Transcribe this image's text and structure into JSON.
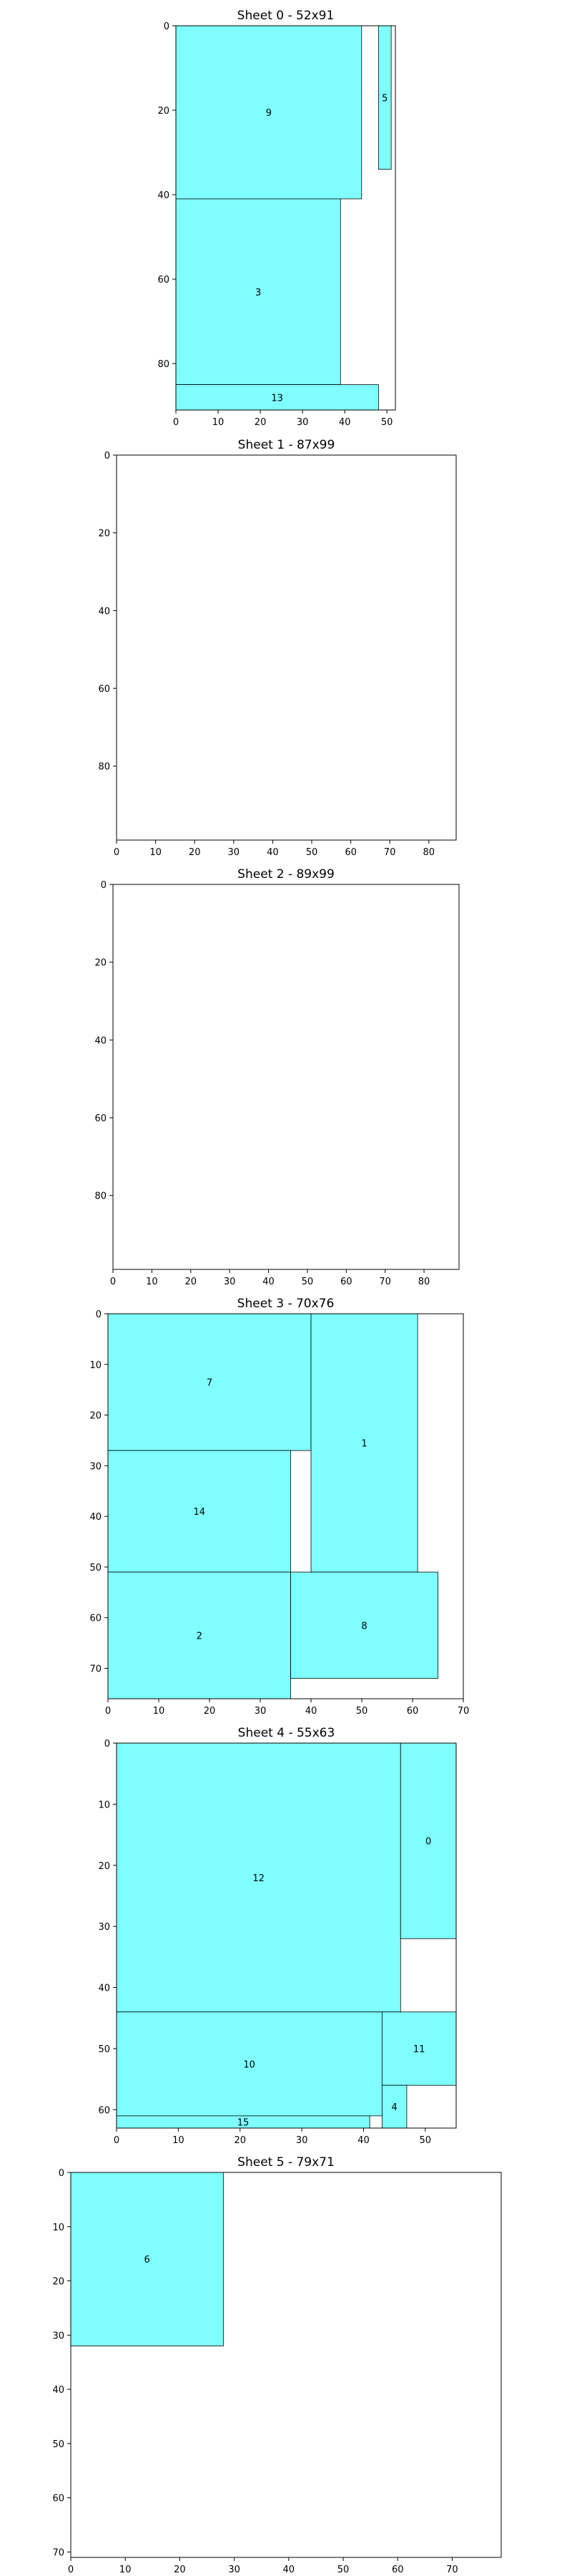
{
  "colors": {
    "fill": "#7fffff",
    "edge": "#000000",
    "background": "#ffffff"
  },
  "chart_data": [
    {
      "type": "rectangle-packing",
      "title": "Sheet 0 - 52x91",
      "xlim": [
        0,
        52
      ],
      "ylim": [
        0,
        91
      ],
      "y_inverted": true,
      "xticks": [
        0,
        10,
        20,
        30,
        40,
        50
      ],
      "yticks": [
        0,
        20,
        40,
        60,
        80
      ],
      "pieces": [
        {
          "label": "9",
          "x": 0,
          "y": 0,
          "w": 44,
          "h": 41
        },
        {
          "label": "5",
          "x": 48,
          "y": 0,
          "w": 3,
          "h": 34
        },
        {
          "label": "3",
          "x": 0,
          "y": 41,
          "w": 39,
          "h": 44
        },
        {
          "label": "13",
          "x": 0,
          "y": 85,
          "w": 48,
          "h": 6
        }
      ]
    },
    {
      "type": "rectangle-packing",
      "title": "Sheet 1 - 87x99",
      "xlim": [
        0,
        87
      ],
      "ylim": [
        0,
        99
      ],
      "y_inverted": true,
      "xticks": [
        0,
        10,
        20,
        30,
        40,
        50,
        60,
        70,
        80
      ],
      "yticks": [
        0,
        20,
        40,
        60,
        80
      ],
      "pieces": []
    },
    {
      "type": "rectangle-packing",
      "title": "Sheet 2 - 89x99",
      "xlim": [
        0,
        89
      ],
      "ylim": [
        0,
        99
      ],
      "y_inverted": true,
      "xticks": [
        0,
        10,
        20,
        30,
        40,
        50,
        60,
        70,
        80
      ],
      "yticks": [
        0,
        20,
        40,
        60,
        80
      ],
      "pieces": []
    },
    {
      "type": "rectangle-packing",
      "title": "Sheet 3 - 70x76",
      "xlim": [
        0,
        70
      ],
      "ylim": [
        0,
        76
      ],
      "y_inverted": true,
      "xticks": [
        0,
        10,
        20,
        30,
        40,
        50,
        60,
        70
      ],
      "yticks": [
        0,
        10,
        20,
        30,
        40,
        50,
        60,
        70
      ],
      "pieces": [
        {
          "label": "7",
          "x": 0,
          "y": 0,
          "w": 40,
          "h": 27
        },
        {
          "label": "1",
          "x": 40,
          "y": 0,
          "w": 21,
          "h": 51
        },
        {
          "label": "14",
          "x": 0,
          "y": 27,
          "w": 36,
          "h": 24
        },
        {
          "label": "2",
          "x": 0,
          "y": 51,
          "w": 36,
          "h": 25
        },
        {
          "label": "8",
          "x": 36,
          "y": 51,
          "w": 29,
          "h": 21
        }
      ]
    },
    {
      "type": "rectangle-packing",
      "title": "Sheet 4 - 55x63",
      "xlim": [
        0,
        55
      ],
      "ylim": [
        0,
        63
      ],
      "y_inverted": true,
      "xticks": [
        0,
        10,
        20,
        30,
        40,
        50
      ],
      "yticks": [
        0,
        10,
        20,
        30,
        40,
        50,
        60
      ],
      "pieces": [
        {
          "label": "12",
          "x": 0,
          "y": 0,
          "w": 46,
          "h": 44
        },
        {
          "label": "0",
          "x": 46,
          "y": 0,
          "w": 9,
          "h": 32
        },
        {
          "label": "10",
          "x": 0,
          "y": 44,
          "w": 43,
          "h": 17
        },
        {
          "label": "11",
          "x": 43,
          "y": 44,
          "w": 12,
          "h": 12
        },
        {
          "label": "4",
          "x": 43,
          "y": 56,
          "w": 4,
          "h": 7
        },
        {
          "label": "15",
          "x": 0,
          "y": 61,
          "w": 41,
          "h": 2
        }
      ]
    },
    {
      "type": "rectangle-packing",
      "title": "Sheet 5 - 79x71",
      "xlim": [
        0,
        79
      ],
      "ylim": [
        0,
        71
      ],
      "y_inverted": true,
      "xticks": [
        0,
        10,
        20,
        30,
        40,
        50,
        60,
        70
      ],
      "yticks": [
        0,
        10,
        20,
        30,
        40,
        50,
        60,
        70
      ],
      "pieces": [
        {
          "label": "6",
          "x": 0,
          "y": 0,
          "w": 28,
          "h": 32
        }
      ]
    }
  ]
}
